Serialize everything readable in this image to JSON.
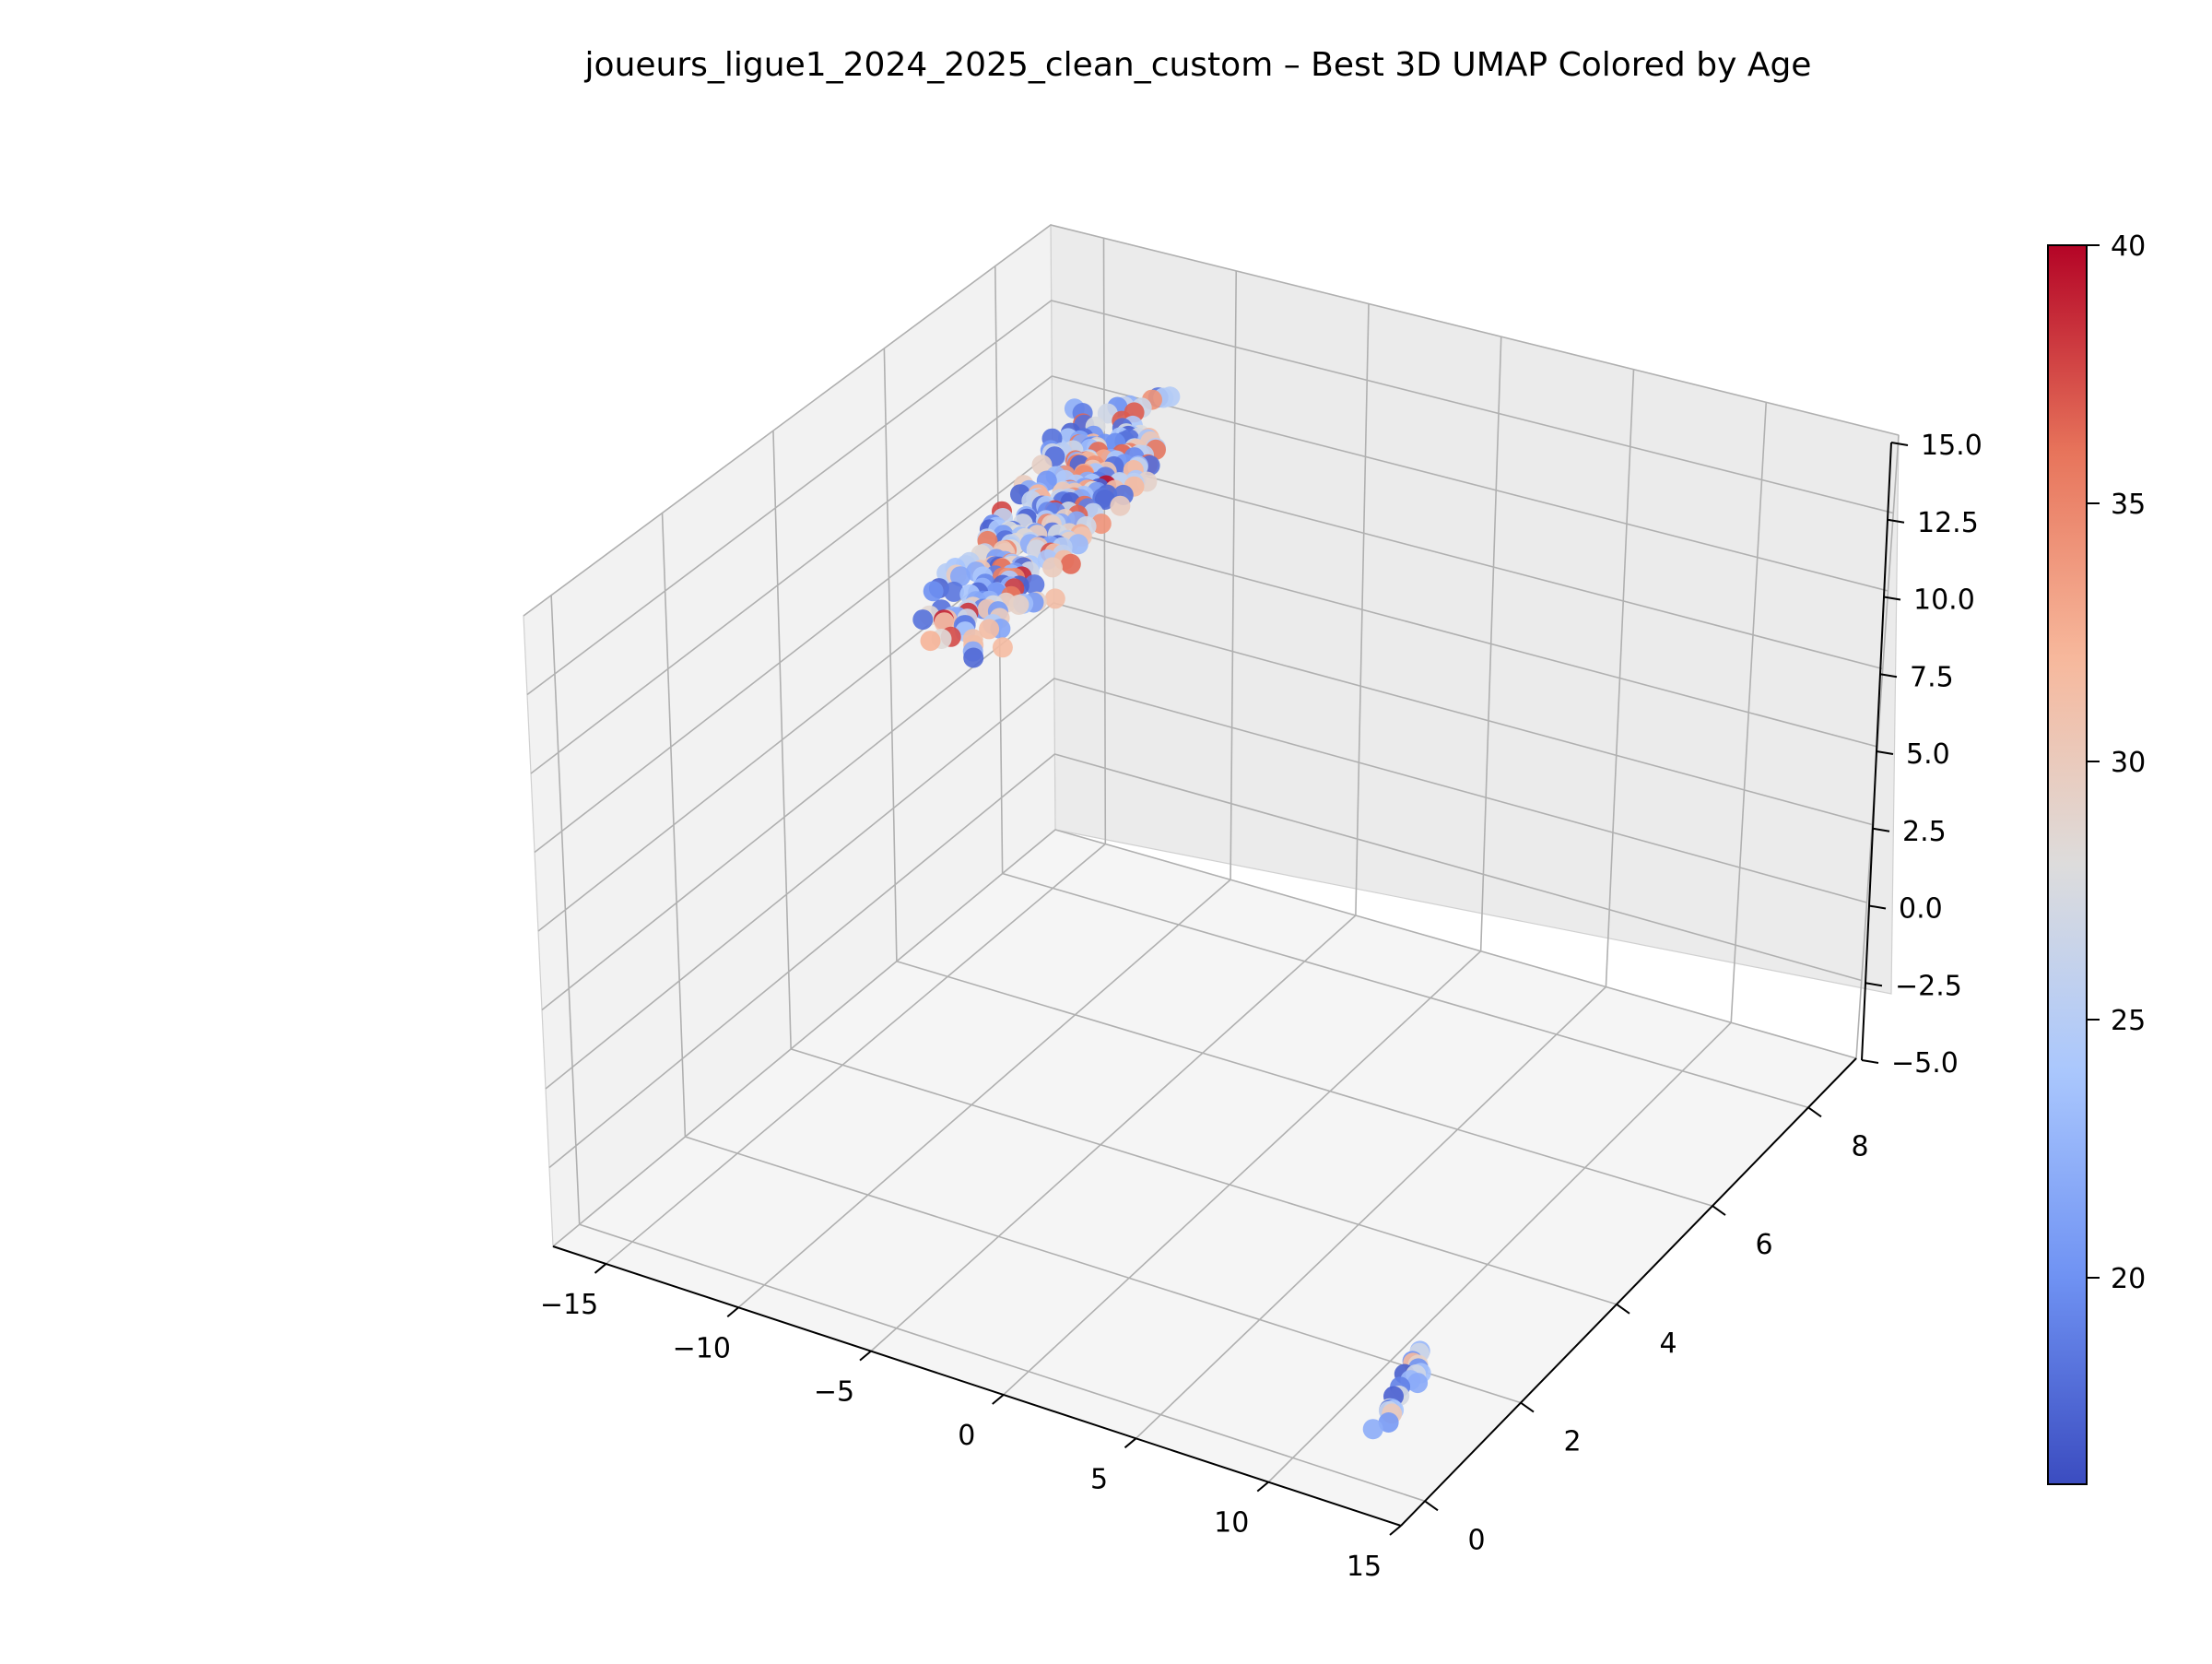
{
  "chart_data": {
    "type": "scatter",
    "dimensions": 3,
    "title": "joueurs_ligue1_2024_2025_clean_custom – Best 3D UMAP Colored by Age",
    "xlabel": "",
    "ylabel": "",
    "zlabel": "",
    "xlim": [
      -17,
      15
    ],
    "ylim": [
      -0.5,
      9
    ],
    "zlim": [
      -5,
      15
    ],
    "x_ticks": [
      "−15",
      "−10",
      "−5",
      "0",
      "5",
      "10",
      "15"
    ],
    "y_ticks": [
      "0",
      "2",
      "4",
      "6",
      "8"
    ],
    "z_ticks": [
      "−5.0",
      "−2.5",
      "0.0",
      "2.5",
      "5.0",
      "7.5",
      "10.0",
      "12.5",
      "15.0"
    ],
    "grid": true,
    "colormap": "coolwarm",
    "colorbar": {
      "range": [
        16,
        40
      ],
      "ticks": [
        "20",
        "25",
        "30",
        "35",
        "40"
      ],
      "colors": [
        "#3b4cc0",
        "#6f92f3",
        "#aac7fd",
        "#dddcdc",
        "#f7b89c",
        "#e7745b",
        "#b40426"
      ]
    },
    "clusters": [
      {
        "name": "",
        "x_range": [
          -15.5,
          -7.5
        ],
        "y_range": [
          6.5,
          9
        ],
        "z_range": [
          8,
          15
        ],
        "count": 300
      },
      {
        "name": "",
        "x_range": [
          11,
          13.5
        ],
        "y_range": [
          0,
          1.8
        ],
        "z_range": [
          -4,
          -1
        ],
        "count": 22
      }
    ]
  }
}
